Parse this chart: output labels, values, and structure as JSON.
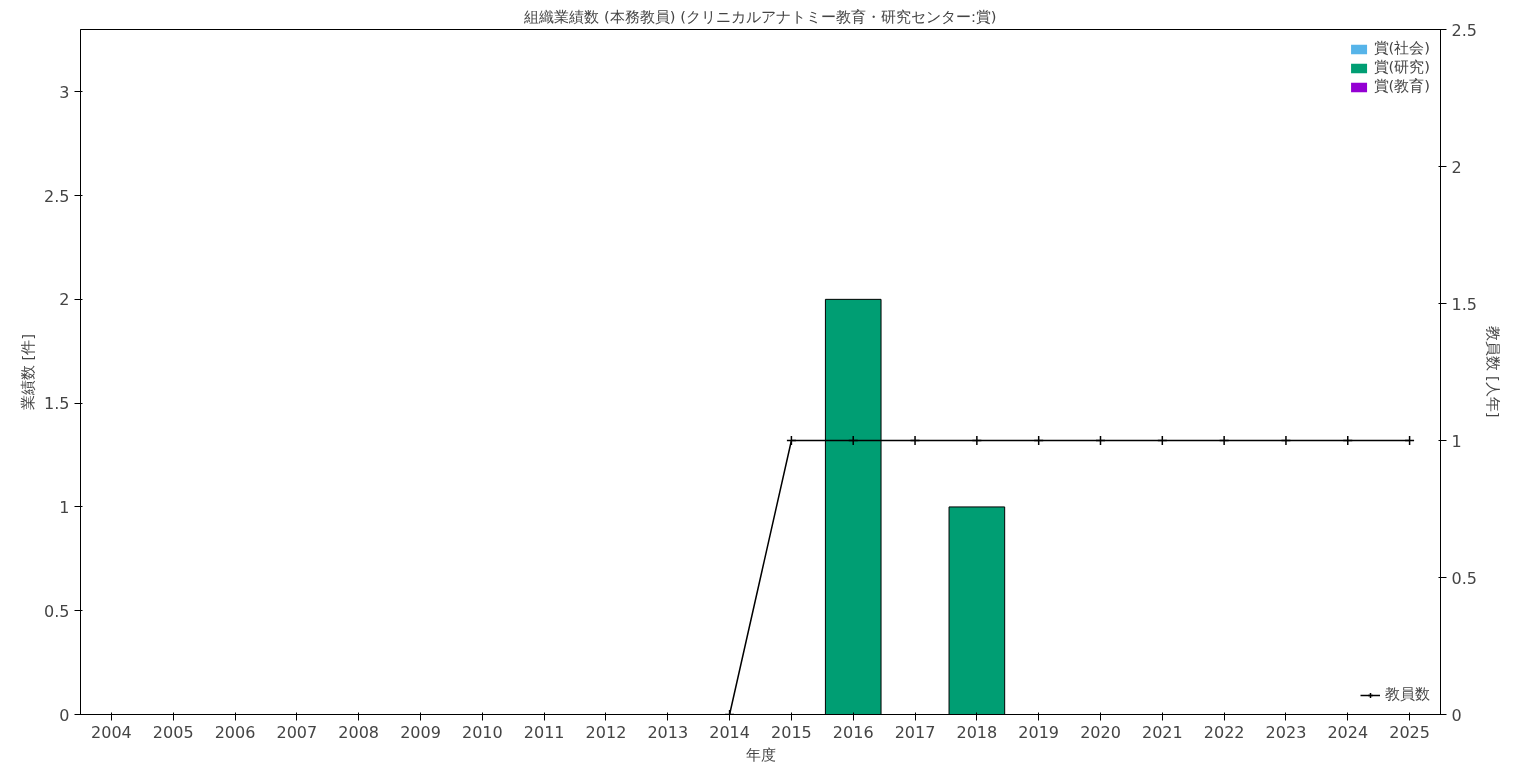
{
  "chart_data": {
    "type": "bar",
    "title": "組織業績数 (本務教員) (クリニカルアナトミー教育・研究センター:賞)",
    "xlabel": "年度",
    "ylabel": "業績数 [件]",
    "y2label": "教員数 [人年]",
    "categories": [
      "2004",
      "2005",
      "2006",
      "2007",
      "2008",
      "2009",
      "2010",
      "2011",
      "2012",
      "2013",
      "2014",
      "2015",
      "2016",
      "2017",
      "2018",
      "2019",
      "2020",
      "2021",
      "2022",
      "2023",
      "2024",
      "2025"
    ],
    "ylim": [
      0,
      3.3
    ],
    "yticks": [
      0,
      0.5,
      1,
      1.5,
      2,
      2.5,
      3
    ],
    "y2lim": [
      0,
      2.5
    ],
    "y2ticks": [
      0,
      0.5,
      1,
      1.5,
      2,
      2.5
    ],
    "grid": false,
    "legend": "top right",
    "series": [
      {
        "name": "賞(社会)",
        "color": "#56b4e9",
        "values": [
          0,
          0,
          0,
          0,
          0,
          0,
          0,
          0,
          0,
          0,
          0,
          0,
          0,
          0,
          0,
          0,
          0,
          0,
          0,
          0,
          0,
          0
        ]
      },
      {
        "name": "賞(研究)",
        "color": "#009e73",
        "values": [
          0,
          0,
          0,
          0,
          0,
          0,
          0,
          0,
          0,
          0,
          0,
          0,
          2,
          0,
          1,
          0,
          0,
          0,
          0,
          0,
          0,
          0
        ]
      },
      {
        "name": "賞(教育)",
        "color": "#9400d3",
        "values": [
          0,
          0,
          0,
          0,
          0,
          0,
          0,
          0,
          0,
          0,
          0,
          0,
          0,
          0,
          0,
          0,
          0,
          0,
          0,
          0,
          0,
          0
        ]
      },
      {
        "name": "教員数",
        "color": "#000000",
        "type": "line",
        "axis": "y2",
        "marker": "cross",
        "values": [
          null,
          null,
          null,
          null,
          null,
          null,
          null,
          null,
          null,
          null,
          0,
          1,
          1,
          1,
          1,
          1,
          1,
          1,
          1,
          1,
          1,
          1
        ]
      }
    ]
  }
}
